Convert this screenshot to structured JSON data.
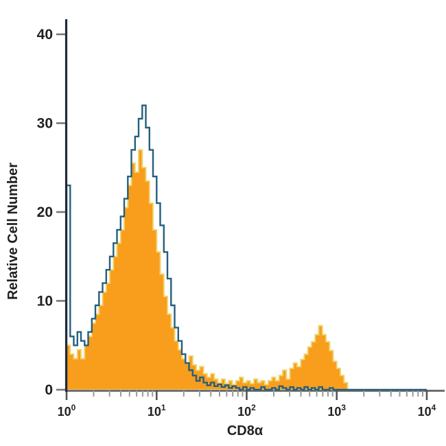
{
  "figure": {
    "background": "#ffffff",
    "y_axis": {
      "label": "Relative Cell Number",
      "ticks": [
        0,
        10,
        20,
        30,
        40
      ],
      "range": [
        0,
        40
      ],
      "axis_color": "#1f2a38",
      "tick_color": "#777777",
      "label_color": "#231f20"
    },
    "x_axis": {
      "label": "CD8α",
      "scale": "log10",
      "base_text": "10",
      "exponents": [
        0,
        1,
        2,
        3,
        4
      ],
      "range_log10": [
        0,
        4
      ],
      "axis_color": "#6e6e6e",
      "major_tick_color": "#555555",
      "minor_tick_color": "#9a9a9a"
    }
  },
  "chart_data": {
    "type": "area",
    "subtype": "flow-cytometry-step-histogram",
    "title": "",
    "xlabel": "CD8α",
    "ylabel": "Relative Cell Number",
    "xlim_log10": [
      0,
      4
    ],
    "ylim": [
      0,
      40
    ],
    "grid": false,
    "legend": false,
    "x_log10_start": 0,
    "x_log10_step": 0.04,
    "series": [
      {
        "name": "stained-sample-filled",
        "style": "filled",
        "fill": "#F99D1C",
        "stroke": "#EFD36B",
        "stroke_width": 2,
        "values": [
          5,
          4,
          3.5,
          4.5,
          3.5,
          5,
          6,
          7.5,
          8.5,
          9.5,
          11,
          12,
          13.5,
          15,
          16.5,
          18,
          20.5,
          23,
          25.5,
          24.5,
          27,
          25,
          23.5,
          21,
          18,
          15.5,
          13,
          10.5,
          8.5,
          7,
          5.5,
          4.5,
          3.5,
          3,
          3.8,
          2.8,
          2.2,
          2.6,
          1.8,
          1.4,
          1.8,
          1.2,
          0.8,
          1.2,
          0.7,
          1,
          0.6,
          1,
          1.4,
          0.8,
          1,
          0.7,
          1.2,
          0.8,
          1,
          0.6,
          1,
          1.4,
          1,
          1.6,
          2.2,
          1.2,
          2.4,
          3,
          2.6,
          3.4,
          4,
          4.8,
          5.4,
          6.2,
          7.2,
          6.2,
          5.4,
          4.4,
          3.2,
          2.4,
          1.6,
          0.8,
          0,
          0,
          0,
          0,
          0,
          0,
          0,
          0,
          0,
          0,
          0,
          0,
          0,
          0,
          0,
          0,
          0,
          0,
          0,
          0,
          0,
          0,
          0
        ]
      },
      {
        "name": "control-open-outline",
        "style": "open",
        "fill": "none",
        "stroke": "#235F7E",
        "stroke_width": 2.4,
        "values": [
          23,
          6,
          5,
          6.5,
          5.5,
          5,
          6.5,
          8,
          9.5,
          11,
          12,
          13.5,
          15,
          16.5,
          18,
          19.5,
          21.5,
          24,
          27,
          28.5,
          30.5,
          32,
          29.5,
          27,
          24,
          21,
          18.5,
          15.5,
          12.5,
          9.5,
          7,
          5.5,
          4,
          3,
          2.2,
          1.6,
          1,
          1.4,
          0.8,
          0.5,
          0.8,
          0.4,
          0.6,
          0.3,
          0.5,
          0.2,
          0.4,
          0.2,
          0,
          0.3,
          0,
          0.2,
          0,
          0,
          0.3,
          0,
          0,
          0.2,
          0,
          0.4,
          0.2,
          0,
          0.3,
          0,
          0.2,
          0,
          0.3,
          0,
          0.2,
          0,
          0.3,
          0,
          0,
          0.2,
          0,
          0,
          0,
          0,
          0,
          0,
          0,
          0,
          0,
          0,
          0,
          0,
          0,
          0,
          0,
          0,
          0,
          0,
          0,
          0,
          0,
          0,
          0,
          0,
          0,
          0,
          0
        ]
      }
    ]
  }
}
